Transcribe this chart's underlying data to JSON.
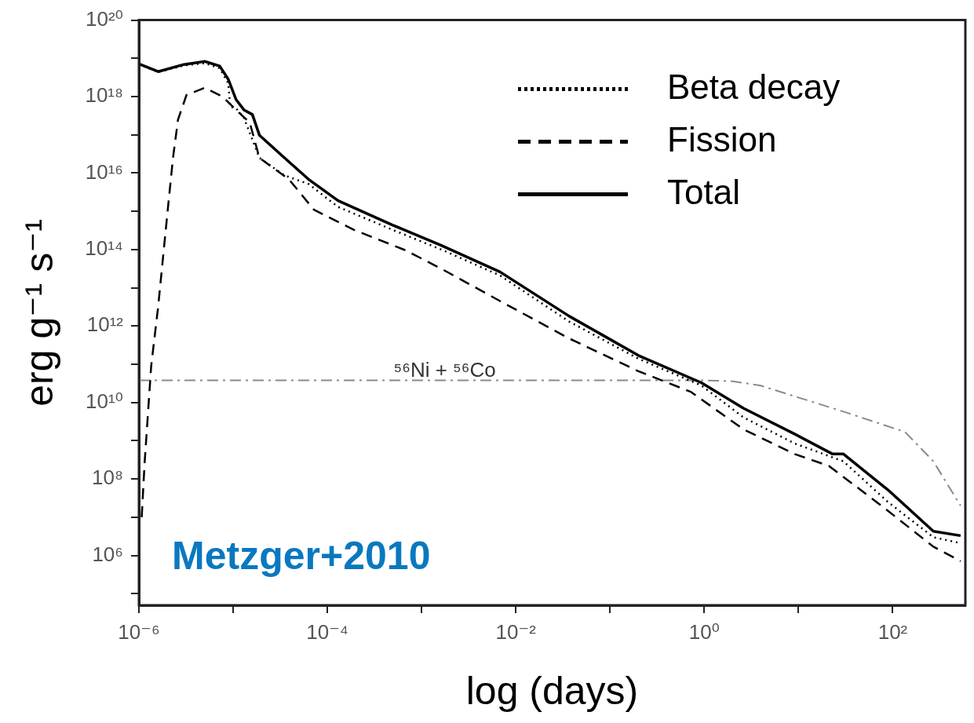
{
  "chart_data": {
    "type": "line",
    "xlabel": "log (days)",
    "ylabel": "erg g⁻¹ s⁻¹",
    "log": "xy",
    "grid": false,
    "legend": "top right",
    "marker": "none",
    "xlim": [
      1e-06,
      590
    ],
    "ylim": [
      50000.0,
      1e+20
    ],
    "xticks": [
      {
        "value": 1e-06,
        "label": "10⁻⁶"
      },
      {
        "value": 1e-05,
        "label": null
      },
      {
        "value": 0.0001,
        "label": "10⁻⁴"
      },
      {
        "value": 0.001,
        "label": null
      },
      {
        "value": 0.01,
        "label": "10⁻²"
      },
      {
        "value": 0.1,
        "label": null
      },
      {
        "value": 1,
        "label": "10⁰"
      },
      {
        "value": 10,
        "label": null
      },
      {
        "value": 100,
        "label": "10²"
      }
    ],
    "yticks": [
      {
        "value": 1e+20,
        "label": "10²⁰"
      },
      {
        "value": 1e+19,
        "label": null
      },
      {
        "value": 1e+18,
        "label": "10¹⁸"
      },
      {
        "value": 1e+17,
        "label": null
      },
      {
        "value": 1e+16,
        "label": "10¹⁶"
      },
      {
        "value": 1000000000000000.0,
        "label": null
      },
      {
        "value": 100000000000000.0,
        "label": "10¹⁴"
      },
      {
        "value": 10000000000000.0,
        "label": null
      },
      {
        "value": 1000000000000.0,
        "label": "10¹²"
      },
      {
        "value": 100000000000.0,
        "label": null
      },
      {
        "value": 10000000000.0,
        "label": "10¹⁰"
      },
      {
        "value": 1000000000.0,
        "label": null
      },
      {
        "value": 100000000.0,
        "label": "10⁸"
      },
      {
        "value": 10000000.0,
        "label": null
      },
      {
        "value": 1000000.0,
        "label": "10⁶"
      },
      {
        "value": 100000.0,
        "label": null
      }
    ],
    "series": [
      {
        "name": "Beta decay",
        "color": "#000000",
        "line_style": "dotted",
        "x": [
          1e-06,
          1.6e-06,
          3e-06,
          5e-06,
          7.2e-06,
          8.9e-06,
          9.3e-06,
          1.07e-05,
          1.3e-05,
          1.9e-05,
          3.5e-05,
          6.3e-05,
          0.00013,
          0.00049,
          0.0017,
          0.0068,
          0.037,
          0.2,
          0.93,
          2.6,
          9.1,
          30,
          89,
          270,
          525
        ],
        "values": [
          7e+18,
          4.4e+18,
          6.5e+18,
          7.5e+18,
          5.5e+18,
          2.2e+18,
          5.4e+17,
          5e+17,
          2.8e+17,
          2.5e+16,
          8700000000000000.0,
          5200000000000000.0,
          1300000000000000.0,
          330000000000000.0,
          95000000000000.0,
          21000000000000.0,
          1300000000000.0,
          140000000000.0,
          28000000000.0,
          4100000000.0,
          850000000.0,
          290000000.0,
          25000000.0,
          3000000.0,
          2100000.0
        ]
      },
      {
        "name": "Fission",
        "color": "#000000",
        "line_style": "dashed",
        "x": [
          1.07e-06,
          1.15e-06,
          1.35e-06,
          1.6e-06,
          2e-06,
          2.3e-06,
          2.6e-06,
          3.2e-06,
          5e-06,
          7.8e-06,
          1.07e-05,
          1.5e-05,
          1.9e-05,
          3.9e-05,
          7.2e-05,
          0.00019,
          0.00068,
          0.0016,
          0.0068,
          0.037,
          0.2,
          0.72,
          2.6,
          9.1,
          21,
          76,
          270,
          525
        ],
        "values": [
          10000000.0,
          270000000.0,
          91000000000.0,
          3200000000000.0,
          830000000000000.0,
          2.5e+16,
          2.5e+17,
          1.1e+18,
          1.7e+18,
          9.8e+17,
          4.5e+17,
          2.1e+17,
          2.5e+16,
          6900000000000000.0,
          1100000000000000.0,
          330000000000000.0,
          95000000000000.0,
          32000000000000.0,
          4500000000000.0,
          470000000000.0,
          66000000000.0,
          19000000000.0,
          2000000000.0,
          450000000.0,
          220000000.0,
          20000000.0,
          1700000.0,
          710000.0
        ]
      },
      {
        "name": "Total",
        "color": "#000000",
        "line_style": "solid",
        "x": [
          1e-06,
          1.6e-06,
          3e-06,
          5e-06,
          7.2e-06,
          8.9e-06,
          1.07e-05,
          1.3e-05,
          1.6e-05,
          1.9e-05,
          3.5e-05,
          6.3e-05,
          0.00013,
          0.00049,
          0.0016,
          0.0068,
          0.037,
          0.2,
          0.93,
          2.6,
          9.1,
          23,
          30,
          89,
          270,
          525
        ],
        "values": [
          7.2e+18,
          4.5e+18,
          6.9e+18,
          8.3e+18,
          6.3e+18,
          2.8e+18,
          8.5e+17,
          4.5e+17,
          3.4e+17,
          9.8e+16,
          2.5e+16,
          6900000000000000.0,
          1900000000000000.0,
          440000000000000.0,
          130000000000000.0,
          26000000000000.0,
          1800000000000.0,
          170000000000.0,
          33000000000.0,
          7100000000.0,
          1500000000.0,
          450000000.0,
          450000000.0,
          52000000.0,
          4300000.0,
          3300000.0
        ]
      },
      {
        "color": "#8a8a8a",
        "line_style": "dashdot",
        "x": [
          1e-06,
          1,
          2,
          3.9,
          32,
          135,
          270,
          525
        ],
        "values": [
          38000000000.0,
          38000000000.0,
          36000000000.0,
          28000000000.0,
          5500000000.0,
          1700000000.0,
          290000000.0,
          20000000.0
        ]
      }
    ],
    "annotations": [
      "⁵⁶Ni + ⁵⁶Co",
      "Metzger+2010"
    ]
  }
}
